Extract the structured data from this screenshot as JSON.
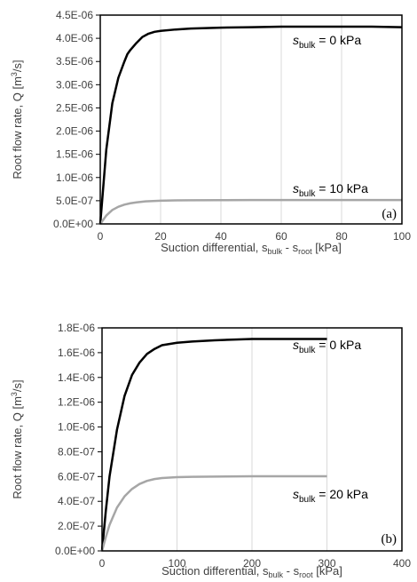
{
  "chart_data": [
    {
      "type": "line",
      "panel_label": "(a)",
      "xlabel": {
        "main": "Suction differential, s",
        "sub1": "bulk",
        "mid": " - s",
        "sub2": "root",
        "end": " [kPa]"
      },
      "ylabel": {
        "main": "Root flow rate, Q [m",
        "sup": "3",
        "end": "/s]"
      },
      "xlim": [
        0,
        100
      ],
      "ylim": [
        0,
        4.5e-06
      ],
      "x_ticks": [
        0,
        20,
        40,
        60,
        80,
        100
      ],
      "x_tick_labels": [
        "0",
        "20",
        "40",
        "60",
        "80",
        "100"
      ],
      "y_ticks": [
        0,
        5e-07,
        1e-06,
        1.5e-06,
        2e-06,
        2.5e-06,
        3e-06,
        3.5e-06,
        4e-06,
        4.5e-06
      ],
      "y_tick_labels": [
        "0.0E+00",
        "5.0E-07",
        "1.0E-06",
        "1.5E-06",
        "2.0E-06",
        "2.5E-06",
        "3.0E-06",
        "3.5E-06",
        "4.0E-06",
        "4.5E-06"
      ],
      "vertical_grid": true,
      "series": [
        {
          "label": {
            "s": "s",
            "sub": "bulk",
            "rest": " = 0 kPa"
          },
          "color": "#000000",
          "x": [
            0,
            2,
            4,
            6,
            8,
            9,
            10,
            12,
            14,
            16,
            18,
            20,
            25,
            30,
            40,
            50,
            60,
            70,
            80,
            90,
            100
          ],
          "y": [
            0,
            1.6e-06,
            2.6e-06,
            3.15e-06,
            3.5e-06,
            3.66e-06,
            3.75e-06,
            3.9e-06,
            4.03e-06,
            4.1e-06,
            4.14e-06,
            4.16e-06,
            4.19e-06,
            4.21e-06,
            4.23e-06,
            4.24e-06,
            4.25e-06,
            4.25e-06,
            4.25e-06,
            4.25e-06,
            4.24e-06
          ]
        },
        {
          "label": {
            "s": "s",
            "sub": "bulk",
            "rest": " = 10 kPa"
          },
          "color": "#a6a6a6",
          "x": [
            0,
            2,
            4,
            6,
            8,
            10,
            12,
            15,
            20,
            25,
            30,
            40,
            50,
            60,
            70,
            80,
            90,
            100
          ],
          "y": [
            0,
            1.8e-07,
            3e-07,
            3.7e-07,
            4.15e-07,
            4.45e-07,
            4.65e-07,
            4.85e-07,
            5e-07,
            5.07e-07,
            5.1e-07,
            5.13e-07,
            5.14e-07,
            5.15e-07,
            5.15e-07,
            5.15e-07,
            5.15e-07,
            5.15e-07
          ]
        }
      ]
    },
    {
      "type": "line",
      "panel_label": "(b)",
      "xlabel": {
        "main": "Suction differential, s",
        "sub1": "bulk",
        "mid": " - s",
        "sub2": "root",
        "end": " [kPa]"
      },
      "ylabel": {
        "main": "Root flow rate, Q [m",
        "sup": "3",
        "end": "/s]"
      },
      "xlim": [
        0,
        400
      ],
      "ylim": [
        0,
        1.8e-06
      ],
      "x_ticks": [
        0,
        100,
        200,
        300,
        400
      ],
      "x_tick_labels": [
        "0",
        "100",
        "200",
        "300",
        "400"
      ],
      "y_ticks": [
        0,
        2e-07,
        4e-07,
        6e-07,
        8e-07,
        1e-06,
        1.2e-06,
        1.4e-06,
        1.6e-06,
        1.8e-06
      ],
      "y_tick_labels": [
        "0.0E+00",
        "2.0E-07",
        "4.0E-07",
        "6.0E-07",
        "8.0E-07",
        "1.0E-06",
        "1.2E-06",
        "1.4E-06",
        "1.6E-06",
        "1.8E-06"
      ],
      "vertical_grid": true,
      "series": [
        {
          "label": {
            "s": "s",
            "sub": "bulk",
            "rest": " = 0 kPa"
          },
          "color": "#000000",
          "x": [
            0,
            5,
            10,
            20,
            30,
            40,
            50,
            60,
            70,
            80,
            100,
            120,
            150,
            200,
            250,
            300
          ],
          "y": [
            0,
            3.2e-07,
            6e-07,
            9.8e-07,
            1.25e-06,
            1.42e-06,
            1.52e-06,
            1.59e-06,
            1.63e-06,
            1.66e-06,
            1.68e-06,
            1.69e-06,
            1.7e-06,
            1.71e-06,
            1.71e-06,
            1.71e-06
          ]
        },
        {
          "label": {
            "s": "s",
            "sub": "bulk",
            "rest": " = 20 kPa"
          },
          "color": "#a6a6a6",
          "x": [
            0,
            5,
            10,
            20,
            30,
            40,
            50,
            60,
            70,
            80,
            100,
            120,
            150,
            200,
            250,
            300
          ],
          "y": [
            0,
            1.1e-07,
            2.1e-07,
            3.5e-07,
            4.4e-07,
            5e-07,
            5.4e-07,
            5.65e-07,
            5.8e-07,
            5.88e-07,
            5.95e-07,
            5.98e-07,
            6e-07,
            6.02e-07,
            6.02e-07,
            6.02e-07
          ]
        }
      ]
    }
  ]
}
